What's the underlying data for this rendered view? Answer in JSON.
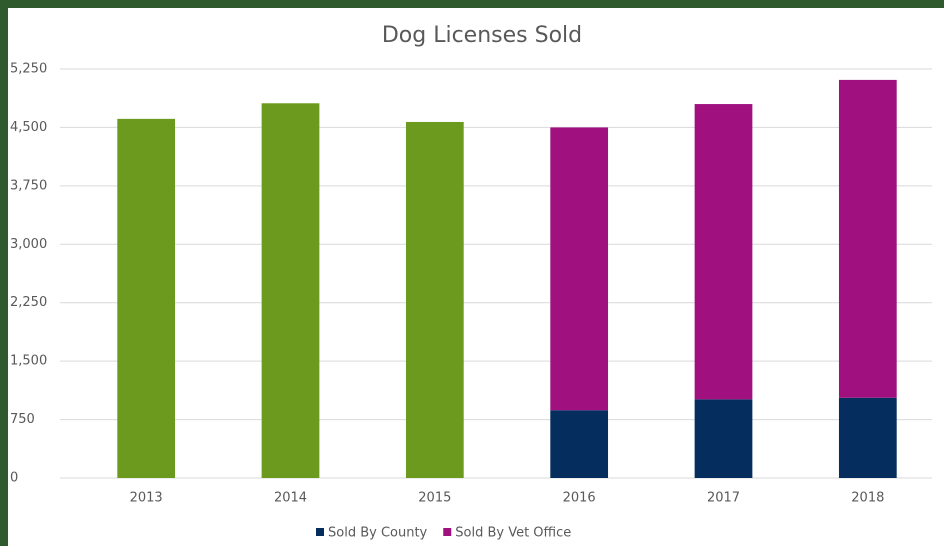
{
  "chart_data": {
    "type": "stacked_bar",
    "title": "Dog Licenses Sold",
    "categories": [
      "2013",
      "2014",
      "2015",
      "2016",
      "2017",
      "2018"
    ],
    "series": [
      {
        "color": "#6b9a1f",
        "values": [
          4610,
          4810,
          4570,
          null,
          null,
          null
        ]
      },
      {
        "name": "Sold By County",
        "color": "#052e5f",
        "values": [
          null,
          null,
          null,
          870,
          1010,
          1030
        ]
      },
      {
        "name": "Sold By Vet Office",
        "color": "#a0117f",
        "values": [
          null,
          null,
          null,
          3630,
          3790,
          4080
        ]
      }
    ],
    "ylim": [
      0,
      5250
    ],
    "yticks": [
      0,
      750,
      {
        "value": 1500,
        "label": "1,500"
      },
      {
        "value": 2250,
        "label": "2,250"
      },
      {
        "value": 3000,
        "label": "3,000"
      },
      {
        "value": 3750,
        "label": "3,750"
      },
      {
        "value": 4500,
        "label": "4,500"
      },
      {
        "value": 5250,
        "label": "5,250"
      }
    ],
    "grid": true,
    "legend": "bottom"
  }
}
